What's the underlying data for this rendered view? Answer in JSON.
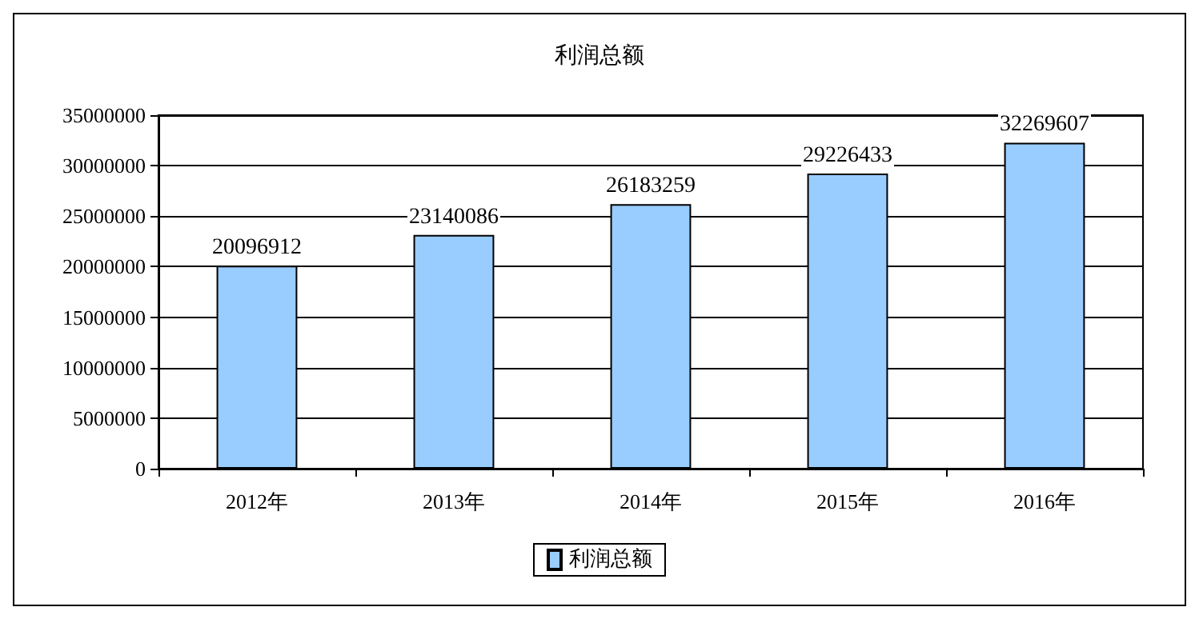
{
  "chart_data": {
    "type": "bar",
    "title": "利润总额",
    "categories": [
      "2012年",
      "2013年",
      "2014年",
      "2015年",
      "2016年"
    ],
    "series": [
      {
        "name": "利润总额",
        "color": "#99ccff",
        "values": [
          20096912,
          23140086,
          26183259,
          29226433,
          32269607
        ]
      }
    ],
    "ylim": [
      0,
      35000000
    ],
    "yticks": [
      0,
      5000000,
      10000000,
      15000000,
      20000000,
      25000000,
      30000000,
      35000000
    ],
    "grid": "y",
    "legend": "bottom",
    "data_labels": true
  }
}
